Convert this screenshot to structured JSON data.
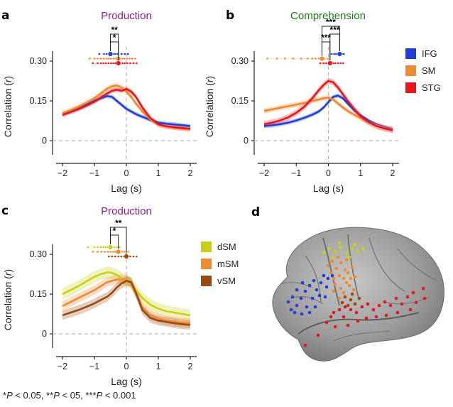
{
  "footnote": {
    "parts": [
      {
        "text": "*",
        "italic": false
      },
      {
        "text": "P",
        "italic": true
      },
      {
        "text": " < 0.05, **",
        "italic": false
      },
      {
        "text": "P",
        "italic": true
      },
      {
        "text": " < 05, ***",
        "italic": false
      },
      {
        "text": "P",
        "italic": true
      },
      {
        "text": " < 0.001",
        "italic": false
      }
    ]
  },
  "panel_d": {
    "letter": "d",
    "electrode_colors": {
      "IFG": "#1f3fd6",
      "SM": "#f08a30",
      "STG": "#e8161b",
      "dSM": "#c9cf14",
      "vSM": "#9a4a10"
    }
  },
  "chart_data": [
    {
      "letter": "a",
      "type": "line",
      "title": "Production",
      "title_color": "#8e1e8e",
      "xlabel": "Lag (s)",
      "ylabel": "Correlation (r)",
      "xlim": [
        -2.2,
        2.2
      ],
      "ylim": [
        -0.03,
        0.37
      ],
      "xticks": [
        -2,
        -1,
        0,
        1,
        2
      ],
      "xticklabels": [
        "−2",
        "−1",
        "0",
        "1",
        "2"
      ],
      "yticks": [
        0,
        0.15,
        0.3
      ],
      "yticklabels": [
        "0",
        "0.15",
        "0.30"
      ],
      "zero_line": true,
      "x": [
        -2.0,
        -1.75,
        -1.5,
        -1.25,
        -1.0,
        -0.8,
        -0.6,
        -0.45,
        -0.3,
        -0.15,
        0.0,
        0.15,
        0.3,
        0.5,
        0.75,
        1.0,
        1.25,
        1.5,
        1.75,
        2.0
      ],
      "series": [
        {
          "name": "IFG",
          "color": "#1f3fd6",
          "values": [
            0.1,
            0.11,
            0.12,
            0.135,
            0.15,
            0.16,
            0.168,
            0.165,
            0.15,
            0.135,
            0.12,
            0.11,
            0.1,
            0.09,
            0.078,
            0.068,
            0.064,
            0.061,
            0.058,
            0.055
          ],
          "band": 0.008
        },
        {
          "name": "SM",
          "color": "#f08a30",
          "values": [
            0.103,
            0.115,
            0.128,
            0.143,
            0.16,
            0.178,
            0.196,
            0.205,
            0.208,
            0.2,
            0.185,
            0.165,
            0.14,
            0.11,
            0.08,
            0.06,
            0.054,
            0.05,
            0.047,
            0.045
          ],
          "band": 0.01
        },
        {
          "name": "STG",
          "color": "#e8161b",
          "values": [
            0.097,
            0.108,
            0.119,
            0.132,
            0.147,
            0.163,
            0.178,
            0.188,
            0.192,
            0.188,
            0.195,
            0.185,
            0.165,
            0.125,
            0.085,
            0.062,
            0.054,
            0.05,
            0.047,
            0.044
          ],
          "band": 0.009
        }
      ],
      "peak_markers": [
        {
          "series": "IFG",
          "color": "#1f3fd6",
          "row": 0,
          "peak": -0.5,
          "points": [
            -0.85,
            -0.7,
            -0.62,
            -0.55,
            -0.48,
            -0.42,
            -0.35,
            -0.28,
            -0.15,
            -0.05,
            0.05
          ]
        },
        {
          "series": "SM",
          "color": "#f08a30",
          "row": 1,
          "peak": -0.25,
          "points": [
            -1.15,
            -1.0,
            -0.9,
            -0.8,
            -0.7,
            -0.62,
            -0.55,
            -0.48,
            -0.4,
            -0.33,
            -0.27,
            -0.2,
            -0.13,
            -0.06,
            0.02,
            0.1,
            0.18,
            0.28
          ]
        },
        {
          "series": "STG",
          "color": "#e8161b",
          "row": 2,
          "peak": -0.25,
          "points": [
            -1.05,
            -0.9,
            -0.8,
            -0.72,
            -0.64,
            -0.56,
            -0.48,
            -0.41,
            -0.34,
            -0.27,
            -0.2,
            -0.12,
            -0.05,
            0.03,
            0.12,
            0.22,
            0.32
          ]
        }
      ],
      "sig_brackets": [
        {
          "from_row": 0,
          "to_row": 2,
          "label": "**",
          "level": 2
        },
        {
          "from_row": 0,
          "to_row": 1,
          "label": "*",
          "level": 1
        }
      ]
    },
    {
      "letter": "b",
      "type": "line",
      "title": "Comprehension",
      "title_color": "#1d7a1d",
      "xlabel": "Lag (s)",
      "ylabel": "Correlation (r)",
      "xlim": [
        -2.2,
        2.2
      ],
      "ylim": [
        -0.03,
        0.37
      ],
      "xticks": [
        -2,
        -1,
        0,
        1,
        2
      ],
      "xticklabels": [
        "−2",
        "−1",
        "0",
        "1",
        "2"
      ],
      "yticks": [
        0,
        0.15,
        0.3
      ],
      "yticklabels": [
        "0",
        "0.15",
        "0.30"
      ],
      "zero_line": true,
      "legend": [
        {
          "name": "IFG",
          "color": "#1f3fd6"
        },
        {
          "name": "SM",
          "color": "#f08a30"
        },
        {
          "name": "STG",
          "color": "#e8161b"
        }
      ],
      "x": [
        -2.0,
        -1.75,
        -1.5,
        -1.25,
        -1.0,
        -0.75,
        -0.5,
        -0.3,
        -0.15,
        0.0,
        0.15,
        0.3,
        0.45,
        0.6,
        0.8,
        1.0,
        1.25,
        1.5,
        1.75,
        2.0
      ],
      "series": [
        {
          "name": "IFG",
          "color": "#1f3fd6",
          "values": [
            0.055,
            0.058,
            0.062,
            0.068,
            0.076,
            0.086,
            0.098,
            0.11,
            0.125,
            0.145,
            0.165,
            0.17,
            0.16,
            0.14,
            0.115,
            0.095,
            0.075,
            0.06,
            0.05,
            0.042
          ],
          "band": 0.008
        },
        {
          "name": "SM",
          "color": "#f08a30",
          "values": [
            0.112,
            0.118,
            0.124,
            0.13,
            0.136,
            0.142,
            0.15,
            0.155,
            0.16,
            0.162,
            0.155,
            0.14,
            0.125,
            0.112,
            0.098,
            0.085,
            0.07,
            0.058,
            0.048,
            0.041
          ],
          "band": 0.01
        },
        {
          "name": "STG",
          "color": "#e8161b",
          "values": [
            0.062,
            0.068,
            0.076,
            0.088,
            0.105,
            0.128,
            0.16,
            0.19,
            0.21,
            0.225,
            0.22,
            0.2,
            0.175,
            0.15,
            0.12,
            0.092,
            0.07,
            0.055,
            0.046,
            0.04
          ],
          "band": 0.012
        }
      ],
      "peak_markers": [
        {
          "series": "IFG",
          "color": "#1f3fd6",
          "row": 0,
          "peak": 0.35,
          "points": [
            0.1,
            0.18,
            0.24,
            0.3,
            0.36,
            0.42,
            0.48
          ]
        },
        {
          "series": "SM",
          "color": "#f08a30",
          "row": 1,
          "peak": -0.2,
          "points": [
            -1.9,
            -1.6,
            -1.35,
            -1.1,
            -0.85,
            -0.65,
            -0.5,
            -0.4,
            -0.3,
            -0.22,
            -0.12,
            -0.02
          ]
        },
        {
          "series": "STG",
          "color": "#e8161b",
          "row": 2,
          "peak": 0.05,
          "points": [
            -0.25,
            -0.15,
            -0.07,
            0.0,
            0.08,
            0.15,
            0.22,
            0.3,
            0.38,
            0.46
          ]
        }
      ],
      "sig_brackets": [
        {
          "from_row": 1,
          "to_row": 0,
          "label": "***",
          "level": 3
        },
        {
          "from_row": 1,
          "to_row": 2,
          "label": "***",
          "level": 1
        },
        {
          "from_row": 2,
          "to_row": 0,
          "label": "***",
          "level": 2
        }
      ]
    },
    {
      "letter": "c",
      "type": "line",
      "title": "Production",
      "title_color": "#8e1e8e",
      "xlabel": "Lag (s)",
      "ylabel": "Correlation (r)",
      "xlim": [
        -2.2,
        2.2
      ],
      "ylim": [
        -0.03,
        0.37
      ],
      "xticks": [
        -2,
        -1,
        0,
        1,
        2
      ],
      "xticklabels": [
        "−2",
        "−1",
        "0",
        "1",
        "2"
      ],
      "yticks": [
        0,
        0.15,
        0.3
      ],
      "yticklabels": [
        "0",
        "0.15",
        "0.30"
      ],
      "zero_line": true,
      "legend": [
        {
          "name": "dSM",
          "color": "#c9cf14"
        },
        {
          "name": "mSM",
          "color": "#f08a30"
        },
        {
          "name": "vSM",
          "color": "#9a4a10"
        }
      ],
      "x": [
        -2.0,
        -1.75,
        -1.5,
        -1.25,
        -1.0,
        -0.8,
        -0.6,
        -0.45,
        -0.3,
        -0.15,
        0.0,
        0.15,
        0.3,
        0.5,
        0.75,
        1.0,
        1.25,
        1.5,
        1.75,
        2.0
      ],
      "series": [
        {
          "name": "dSM",
          "color": "#c9cf14",
          "values": [
            0.15,
            0.165,
            0.18,
            0.198,
            0.215,
            0.225,
            0.232,
            0.23,
            0.222,
            0.21,
            0.2,
            0.19,
            0.165,
            0.135,
            0.11,
            0.095,
            0.085,
            0.08,
            0.075,
            0.07
          ],
          "band": 0.022
        },
        {
          "name": "mSM",
          "color": "#f08a30",
          "values": [
            0.105,
            0.12,
            0.135,
            0.15,
            0.165,
            0.18,
            0.195,
            0.2,
            0.205,
            0.205,
            0.205,
            0.19,
            0.15,
            0.1,
            0.07,
            0.058,
            0.05,
            0.046,
            0.042,
            0.04
          ],
          "band": 0.018
        },
        {
          "name": "vSM",
          "color": "#9a4a10",
          "values": [
            0.07,
            0.08,
            0.09,
            0.102,
            0.115,
            0.128,
            0.14,
            0.155,
            0.175,
            0.19,
            0.2,
            0.195,
            0.155,
            0.09,
            0.06,
            0.05,
            0.045,
            0.04,
            0.036,
            0.034
          ],
          "band": 0.018
        }
      ],
      "peak_markers": [
        {
          "series": "dSM",
          "color": "#c9cf14",
          "row": 0,
          "peak": -0.5,
          "points": [
            -1.2,
            -1.0,
            -0.9,
            -0.8,
            -0.72,
            -0.65,
            -0.58,
            -0.52,
            -0.45,
            -0.38,
            -0.3,
            -0.22
          ]
        },
        {
          "series": "mSM",
          "color": "#f08a30",
          "row": 1,
          "peak": -0.25,
          "points": [
            -1.05,
            -0.9,
            -0.78,
            -0.68,
            -0.58,
            -0.5,
            -0.42,
            -0.35,
            -0.28,
            -0.2,
            -0.12,
            -0.05,
            0.05
          ]
        },
        {
          "series": "vSM",
          "color": "#9a4a10",
          "row": 2,
          "peak": 0.0,
          "points": [
            -0.55,
            -0.45,
            -0.35,
            -0.25,
            -0.16,
            -0.08,
            0.02,
            0.12,
            0.22,
            0.32
          ]
        }
      ],
      "sig_brackets": [
        {
          "from_row": 0,
          "to_row": 2,
          "label": "**",
          "level": 2
        },
        {
          "from_row": 0,
          "to_row": 1,
          "label": "*",
          "level": 1
        }
      ]
    }
  ]
}
